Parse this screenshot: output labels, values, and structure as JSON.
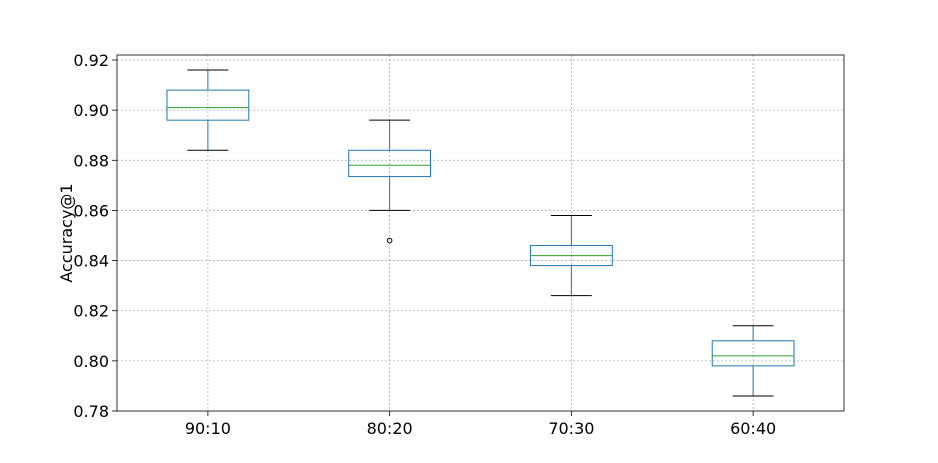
{
  "chart_data": {
    "type": "box",
    "title": "",
    "xlabel": "",
    "ylabel": "Accuracy@1",
    "ylim": [
      0.78,
      0.922
    ],
    "yticks": [
      0.78,
      0.8,
      0.82,
      0.84,
      0.86,
      0.88,
      0.9,
      0.92
    ],
    "ytick_labels": [
      "0.78",
      "0.80",
      "0.82",
      "0.84",
      "0.86",
      "0.88",
      "0.90",
      "0.92"
    ],
    "grid": true,
    "categories": [
      "90:10",
      "80:20",
      "70:30",
      "60:40"
    ],
    "boxes": [
      {
        "category": "90:10",
        "whisker_low": 0.884,
        "q1": 0.896,
        "median": 0.901,
        "q3": 0.908,
        "whisker_high": 0.916,
        "outliers": []
      },
      {
        "category": "80:20",
        "whisker_low": 0.86,
        "q1": 0.8735,
        "median": 0.878,
        "q3": 0.884,
        "whisker_high": 0.896,
        "outliers": [
          0.848
        ]
      },
      {
        "category": "70:30",
        "whisker_low": 0.826,
        "q1": 0.838,
        "median": 0.842,
        "q3": 0.846,
        "whisker_high": 0.858,
        "outliers": []
      },
      {
        "category": "60:40",
        "whisker_low": 0.786,
        "q1": 0.798,
        "median": 0.802,
        "q3": 0.808,
        "whisker_high": 0.814,
        "outliers": []
      }
    ],
    "colors": {
      "box": "#1f77b4",
      "median": "#2ca02c",
      "whisker_cap": "#000000",
      "grid": "#b0b0b0",
      "axes": "#000000"
    }
  }
}
